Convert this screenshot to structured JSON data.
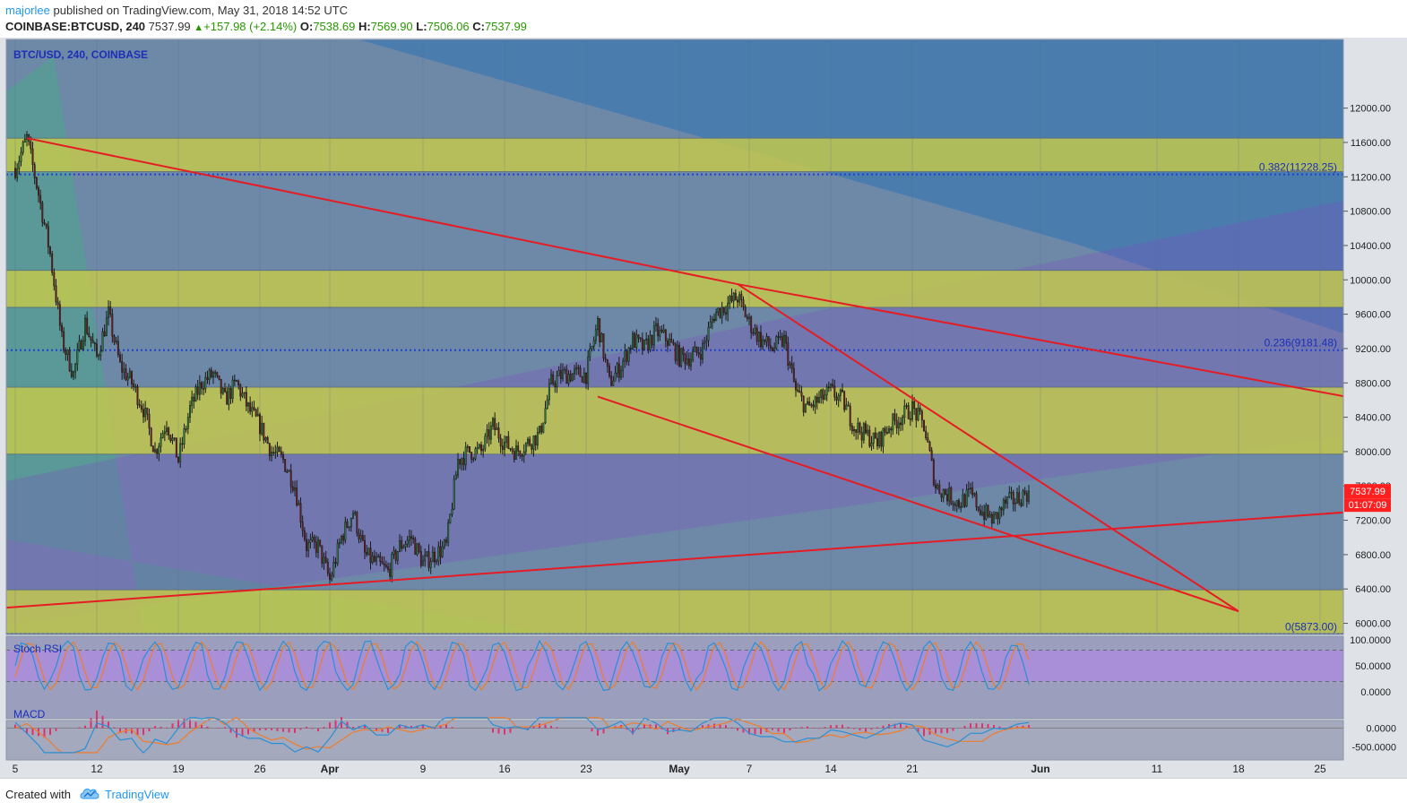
{
  "header": {
    "author": "majorlee",
    "published_text": "published on TradingView.com, May 31, 2018 14:52 UTC",
    "symbol": "COINBASE:BTCUSD, 240",
    "last_price": "7537.99",
    "change": "+157.98 (+2.14%)",
    "open_label": "O:",
    "open_value": "7538.69",
    "high_label": "H:",
    "high_value": "7569.90",
    "low_label": "L:",
    "low_value": "7506.06",
    "close_label": "C:",
    "close_value": "7537.99"
  },
  "pane_title": "BTC/USD, 240, COINBASE",
  "footer": {
    "created_with": "Created with",
    "brand": "TradingView"
  },
  "colors": {
    "background": "#6e88a8",
    "yellow_band": "#c6cb4a",
    "trendline": "#e51c23",
    "price_tag": "#ff1f1f",
    "fib_level": "#2040d0",
    "stoch_k": "#2a8fd6",
    "stoch_d": "#f07c2a",
    "macd_line": "#2a8fd6",
    "signal_line": "#f07c2a",
    "histogram": "#e2306c"
  },
  "chart_data": {
    "type": "candlestick",
    "symbol": "BTC/USD",
    "interval": "240",
    "exchange": "COINBASE",
    "ylim": [
      5870,
      12800
    ],
    "y_ticks": [
      "12000.00",
      "11600.00",
      "11200.00",
      "10800.00",
      "10400.00",
      "10000.00",
      "9600.00",
      "9200.00",
      "8800.00",
      "8400.00",
      "8000.00",
      "7600.00",
      "7200.00",
      "6800.00",
      "6400.00",
      "6000.00"
    ],
    "x_ticks": [
      "5",
      "12",
      "19",
      "26",
      "Apr",
      "9",
      "16",
      "23",
      "May",
      "7",
      "14",
      "21",
      "Jun",
      "11",
      "18",
      "25"
    ],
    "last_price_tag": "7537.99",
    "countdown_tag": "01:07:09",
    "fib_levels": [
      {
        "label": "0.382(11228.25)",
        "value": 11228.25
      },
      {
        "label": "0.236(9181.48)",
        "value": 9181.48
      },
      {
        "label": "0(5873.00)",
        "value": 5873.0
      }
    ],
    "zones": [
      {
        "from": 11260,
        "to": 11650
      },
      {
        "from": 9680,
        "to": 10110
      },
      {
        "from": 7970,
        "to": 8750
      },
      {
        "from": 5880,
        "to": 6390
      }
    ],
    "price_path": [
      [
        "2018-03-05",
        11300
      ],
      [
        "2018-03-06",
        11650
      ],
      [
        "2018-03-07",
        11000
      ],
      [
        "2018-03-08",
        10300
      ],
      [
        "2018-03-09",
        9300
      ],
      [
        "2018-03-10",
        8900
      ],
      [
        "2018-03-11",
        9500
      ],
      [
        "2018-03-12",
        9100
      ],
      [
        "2018-03-13",
        9600
      ],
      [
        "2018-03-14",
        9000
      ],
      [
        "2018-03-15",
        8800
      ],
      [
        "2018-03-16",
        8500
      ],
      [
        "2018-03-17",
        8000
      ],
      [
        "2018-03-18",
        8350
      ],
      [
        "2018-03-19",
        7900
      ],
      [
        "2018-03-20",
        8500
      ],
      [
        "2018-03-21",
        8800
      ],
      [
        "2018-03-22",
        8900
      ],
      [
        "2018-03-23",
        8600
      ],
      [
        "2018-03-24",
        8800
      ],
      [
        "2018-03-25",
        8500
      ],
      [
        "2018-03-26",
        8300
      ],
      [
        "2018-03-27",
        8000
      ],
      [
        "2018-03-28",
        7900
      ],
      [
        "2018-03-29",
        7600
      ],
      [
        "2018-03-30",
        6900
      ],
      [
        "2018-03-31",
        6900
      ],
      [
        "2018-04-01",
        6500
      ],
      [
        "2018-04-02",
        7000
      ],
      [
        "2018-04-03",
        7300
      ],
      [
        "2018-04-04",
        6800
      ],
      [
        "2018-04-05",
        6700
      ],
      [
        "2018-04-06",
        6600
      ],
      [
        "2018-04-07",
        6900
      ],
      [
        "2018-04-08",
        7000
      ],
      [
        "2018-04-09",
        6700
      ],
      [
        "2018-04-10",
        6800
      ],
      [
        "2018-04-11",
        6900
      ],
      [
        "2018-04-12",
        7900
      ],
      [
        "2018-04-13",
        8000
      ],
      [
        "2018-04-14",
        8000
      ],
      [
        "2018-04-15",
        8300
      ],
      [
        "2018-04-16",
        8100
      ],
      [
        "2018-04-17",
        8000
      ],
      [
        "2018-04-18",
        8100
      ],
      [
        "2018-04-19",
        8200
      ],
      [
        "2018-04-20",
        8800
      ],
      [
        "2018-04-21",
        8900
      ],
      [
        "2018-04-22",
        8900
      ],
      [
        "2018-04-23",
        8900
      ],
      [
        "2018-04-24",
        9500
      ],
      [
        "2018-04-25",
        8800
      ],
      [
        "2018-04-26",
        9000
      ],
      [
        "2018-04-27",
        9300
      ],
      [
        "2018-04-28",
        9200
      ],
      [
        "2018-04-29",
        9400
      ],
      [
        "2018-04-30",
        9300
      ],
      [
        "2018-05-01",
        9100
      ],
      [
        "2018-05-02",
        9100
      ],
      [
        "2018-05-03",
        9200
      ],
      [
        "2018-05-04",
        9600
      ],
      [
        "2018-05-05",
        9700
      ],
      [
        "2018-05-06",
        9800
      ],
      [
        "2018-05-07",
        9500
      ],
      [
        "2018-05-08",
        9300
      ],
      [
        "2018-05-09",
        9200
      ],
      [
        "2018-05-10",
        9300
      ],
      [
        "2018-05-11",
        8700
      ],
      [
        "2018-05-12",
        8500
      ],
      [
        "2018-05-13",
        8600
      ],
      [
        "2018-05-14",
        8700
      ],
      [
        "2018-05-15",
        8600
      ],
      [
        "2018-05-16",
        8300
      ],
      [
        "2018-05-17",
        8200
      ],
      [
        "2018-05-18",
        8100
      ],
      [
        "2018-05-19",
        8300
      ],
      [
        "2018-05-20",
        8400
      ],
      [
        "2018-05-21",
        8500
      ],
      [
        "2018-05-22",
        8300
      ],
      [
        "2018-05-23",
        7600
      ],
      [
        "2018-05-24",
        7500
      ],
      [
        "2018-05-25",
        7400
      ],
      [
        "2018-05-26",
        7500
      ],
      [
        "2018-05-27",
        7300
      ],
      [
        "2018-05-28",
        7200
      ],
      [
        "2018-05-29",
        7400
      ],
      [
        "2018-05-30",
        7450
      ],
      [
        "2018-05-31",
        7538
      ]
    ],
    "indicators": [
      {
        "name": "Stoch RSI",
        "ticks": [
          "100.0000",
          "50.0000",
          "0.0000"
        ],
        "ylim": [
          0,
          100
        ]
      },
      {
        "name": "MACD",
        "ticks": [
          "0.0000",
          "-500.0000"
        ],
        "ylim": [
          -700,
          300
        ]
      }
    ]
  }
}
